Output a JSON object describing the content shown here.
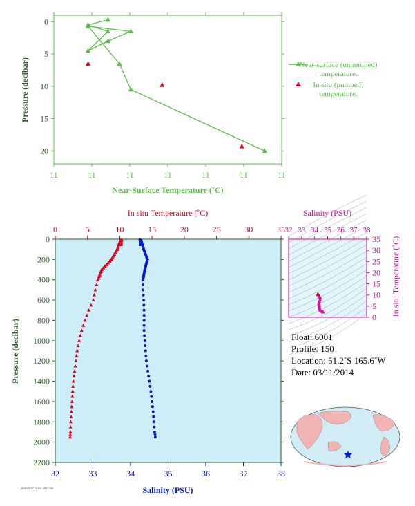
{
  "top_chart": {
    "title": "",
    "xlabel": "Near-Surface Temperature (˚C)",
    "ylabel": "Pressure (decibar)",
    "x_tick_labels": [
      "11",
      "11",
      "11",
      "11",
      "11",
      "11",
      "11"
    ],
    "y_ticks": [
      0,
      5,
      10,
      15,
      20
    ],
    "legend": [
      {
        "label_line1": "Near-surface (unpumped)",
        "label_line2": "temperature.",
        "marker": "line-triangle",
        "color": "#5cbf4b"
      },
      {
        "label_line1": "In situ (pumped)",
        "label_line2": "temperature.",
        "marker": "triangle",
        "color": "#e0001a"
      }
    ]
  },
  "main_chart": {
    "top_axis_label": "In situ Temperature (˚C)",
    "bottom_axis_label": "Salinity (PSU)",
    "ylabel": "Pressure (decibar)",
    "temp_ticks": [
      0,
      5,
      10,
      15,
      20,
      25,
      30,
      35
    ],
    "sal_ticks": [
      32,
      33,
      34,
      35,
      36,
      37,
      38
    ],
    "p_ticks": [
      0,
      200,
      400,
      600,
      800,
      1000,
      1200,
      1400,
      1600,
      1800,
      2000,
      2200
    ]
  },
  "ts_chart": {
    "top_label": "Salinity (PSU)",
    "right_label": "In situ Temperature (˚C)",
    "sal_ticks": [
      32,
      33,
      34,
      35,
      36,
      37,
      38
    ],
    "temp_ticks": [
      0,
      5,
      10,
      15,
      20,
      25,
      30,
      35
    ]
  },
  "info": {
    "float": "Float:  6001",
    "profile": "Profile:  150",
    "location": "Location:  51.2˚S  165.6˚W",
    "date": "Date:  03/11/2014"
  },
  "stamp": "2019-04-07 16:13 · 6001/150",
  "colors": {
    "green": "#5cbf4b",
    "red": "#e0001a",
    "blue": "#0018d6",
    "magenta": "#d4119e",
    "panel_bg": "#cdeef8",
    "axis_green": "#2e5e2a"
  },
  "chart_data": [
    {
      "type": "line",
      "name": "near-surface",
      "xlim": [
        10.0,
        14.0
      ],
      "ylim": [
        22.0,
        -1.0
      ],
      "series": [
        {
          "name": "Near-surface (unpumped) temperature.",
          "mode": "line-triangle",
          "x": [
            10.95,
            10.6,
            10.95,
            10.6,
            10.95,
            11.35,
            10.6,
            11.15,
            11.35,
            13.7
          ],
          "y": [
            -0.3,
            0.5,
            1.5,
            4.5,
            3.0,
            1.5,
            0.7,
            6.5,
            10.5,
            20.0
          ]
        },
        {
          "name": "In situ (pumped) temperature.",
          "mode": "triangle",
          "x": [
            10.6,
            11.9,
            13.3
          ],
          "y": [
            6.5,
            9.8,
            19.3
          ]
        }
      ]
    },
    {
      "type": "line",
      "name": "profile",
      "ylim": [
        2200,
        0
      ],
      "temp_lim": [
        0,
        35
      ],
      "sal_lim": [
        32,
        38
      ],
      "series": [
        {
          "name": "In situ Temperature (˚C)",
          "axis": "temperature",
          "pressure": [
            5,
            100,
            200,
            300,
            400,
            500,
            600,
            700,
            800,
            900,
            1000,
            1100,
            1200,
            1300,
            1400,
            1500,
            1600,
            1700,
            1800,
            1900,
            1950
          ],
          "values": [
            10.3,
            9.6,
            8.7,
            7.2,
            6.6,
            6.2,
            5.9,
            5.2,
            4.6,
            4.1,
            3.7,
            3.4,
            3.2,
            3.0,
            2.8,
            2.7,
            2.6,
            2.5,
            2.4,
            2.35,
            2.3
          ]
        },
        {
          "name": "Salinity (PSU)",
          "axis": "salinity",
          "pressure": [
            5,
            100,
            200,
            300,
            400,
            500,
            600,
            700,
            800,
            900,
            1000,
            1100,
            1200,
            1300,
            1400,
            1500,
            1600,
            1700,
            1800,
            1900,
            1950
          ],
          "values": [
            34.25,
            34.35,
            34.45,
            34.38,
            34.33,
            34.33,
            34.35,
            34.36,
            34.36,
            34.36,
            34.38,
            34.4,
            34.42,
            34.46,
            34.5,
            34.54,
            34.57,
            34.6,
            34.62,
            34.64,
            34.66
          ]
        }
      ]
    },
    {
      "type": "scatter",
      "name": "ts-diagram",
      "xlim": [
        32,
        38
      ],
      "ylim": [
        0,
        35
      ],
      "series": [
        {
          "name": "T-S",
          "salinity": [
            34.25,
            34.35,
            34.45,
            34.38,
            34.33,
            34.33,
            34.35,
            34.36,
            34.36,
            34.38,
            34.42,
            34.5,
            34.57,
            34.64,
            34.66
          ],
          "temperature": [
            10.3,
            9.6,
            8.7,
            7.2,
            6.6,
            6.2,
            5.9,
            5.2,
            4.6,
            3.7,
            3.2,
            2.8,
            2.6,
            2.35,
            2.3
          ]
        }
      ]
    }
  ]
}
